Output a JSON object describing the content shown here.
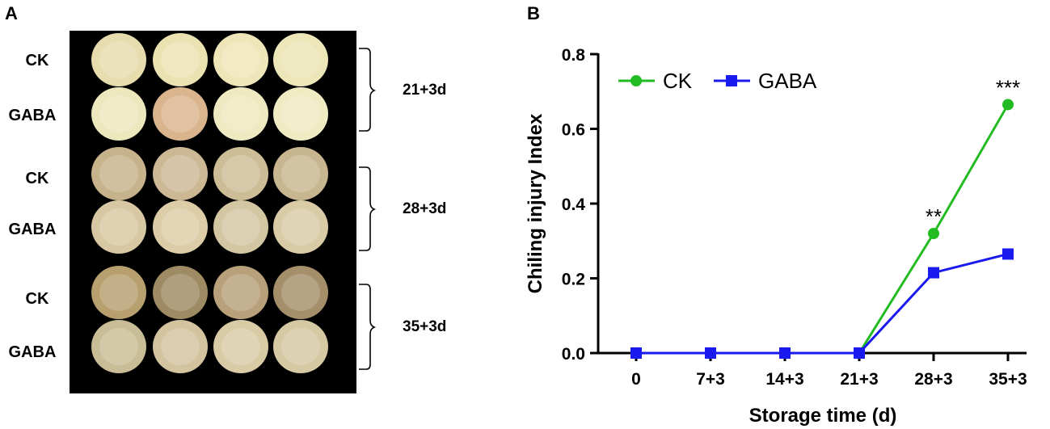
{
  "panel_a": {
    "letter": "A",
    "rows": [
      "CK",
      "GABA",
      "CK",
      "GABA",
      "CK",
      "GABA"
    ],
    "groups": [
      "21+3d",
      "28+3d",
      "35+3d"
    ],
    "fruit_colors": [
      [
        "#e6dcae",
        "#ebe2b2",
        "#eee6b9",
        "#ece6b8"
      ],
      [
        "#ede7bd",
        "#d9b48d",
        "#eee9c0",
        "#efebc3"
      ],
      [
        "#c7b38b",
        "#cdb896",
        "#cdbd97",
        "#c7b690"
      ],
      [
        "#d7c8a3",
        "#dccda8",
        "#d3c6a3",
        "#d8cba5"
      ],
      [
        "#b89f6e",
        "#9e8a63",
        "#b7a07a",
        "#a48f6a"
      ],
      [
        "#c9bd97",
        "#d3c49f",
        "#d8cba5",
        "#d5c9a3"
      ]
    ]
  },
  "panel_b": {
    "letter": "B"
  },
  "chart_data": {
    "type": "line",
    "categories": [
      "0",
      "7+3",
      "14+3",
      "21+3",
      "28+3",
      "35+3"
    ],
    "series": [
      {
        "name": "CK",
        "color": "#22bb22",
        "marker": "circle",
        "values": [
          0,
          0,
          0,
          0,
          0.32,
          0.665
        ]
      },
      {
        "name": "GABA",
        "color": "#1a1aee",
        "marker": "square",
        "values": [
          0,
          0,
          0,
          0,
          0.215,
          0.265
        ]
      }
    ],
    "annotations": [
      {
        "category": "28+3",
        "text": "**"
      },
      {
        "category": "35+3",
        "text": "***"
      }
    ],
    "xlabel": "Storage time (d)",
    "ylabel": "Chiling injury Index",
    "ylim": [
      0,
      0.8
    ],
    "yticks": [
      "0.0",
      "0.2",
      "0.4",
      "0.6",
      "0.8"
    ],
    "legend": "top-left",
    "grid": false
  }
}
